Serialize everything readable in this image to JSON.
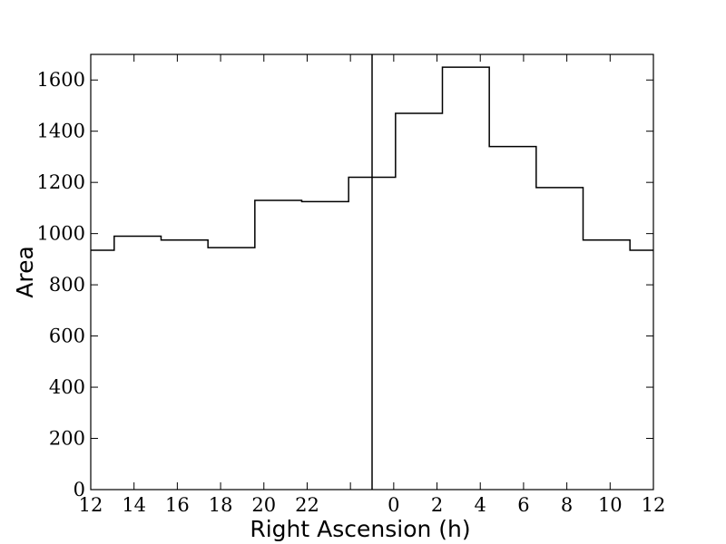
{
  "chart_data": {
    "type": "line",
    "style": "step",
    "xlabel": "Right Ascension (h)",
    "ylabel": "Area",
    "title": "",
    "ylim": [
      0,
      1700
    ],
    "x_tick_labels": [
      "12",
      "14",
      "16",
      "18",
      "20",
      "22",
      "",
      "0",
      "2",
      "4",
      "6",
      "8",
      "10",
      "12"
    ],
    "y_ticks": [
      0,
      200,
      400,
      600,
      800,
      1000,
      1200,
      1400,
      1600
    ],
    "y_tick_labels": [
      "0",
      "200",
      "400",
      "600",
      "800",
      "1000",
      "1200",
      "1400",
      "1600"
    ],
    "bins": [
      {
        "ra_start": "12",
        "ra_end": "13",
        "value": 935
      },
      {
        "ra_start": "13",
        "ra_end": "15",
        "value": 990
      },
      {
        "ra_start": "15",
        "ra_end": "17",
        "value": 975
      },
      {
        "ra_start": "17",
        "ra_end": "19",
        "value": 945
      },
      {
        "ra_start": "19",
        "ra_end": "21",
        "value": 1130
      },
      {
        "ra_start": "21",
        "ra_end": "23",
        "value": 1125
      },
      {
        "ra_start": "23",
        "ra_end": "0",
        "value": 1220
      },
      {
        "ra_start": "0",
        "ra_end": "1",
        "value": 1220
      },
      {
        "ra_start": "1",
        "ra_end": "3",
        "value": 1470
      },
      {
        "ra_start": "3",
        "ra_end": "5",
        "value": 1650
      },
      {
        "ra_start": "5",
        "ra_end": "7",
        "value": 1340
      },
      {
        "ra_start": "7",
        "ra_end": "9",
        "value": 1180
      },
      {
        "ra_start": "9",
        "ra_end": "11",
        "value": 975
      },
      {
        "ra_start": "11",
        "ra_end": "12",
        "value": 935
      }
    ],
    "vertical_line_at": "0",
    "grid": false,
    "legend": "none"
  }
}
